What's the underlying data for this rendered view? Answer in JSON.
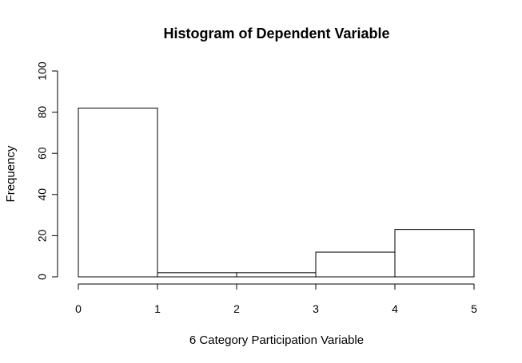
{
  "chart_data": {
    "type": "bar",
    "title": "Histogram of Dependent Variable",
    "xlabel": "6 Category Participation Variable",
    "ylabel": "Frequency",
    "bins": [
      [
        0,
        1
      ],
      [
        1,
        2
      ],
      [
        2,
        3
      ],
      [
        3,
        4
      ],
      [
        4,
        5
      ]
    ],
    "values": [
      82,
      2,
      2,
      12,
      23
    ],
    "xlim": [
      0,
      5
    ],
    "ylim": [
      0,
      100
    ],
    "xticks": [
      0,
      1,
      2,
      3,
      4,
      5
    ],
    "yticks": [
      0,
      20,
      40,
      60,
      80,
      100
    ],
    "grid": false,
    "bar_fill": "#ffffff",
    "bar_stroke": "#000000"
  }
}
